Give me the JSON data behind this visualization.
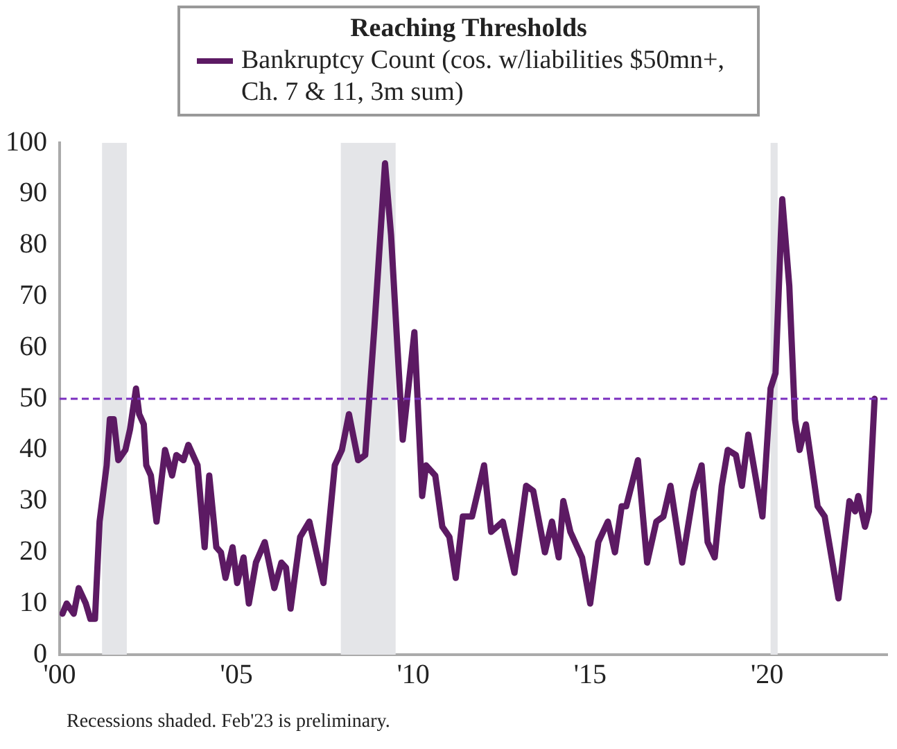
{
  "chart_data": {
    "type": "line",
    "title": "Reaching Thresholds",
    "series": [
      {
        "name": "Bankruptcy Count (cos. w/liabilities $50mn+, Ch. 7 & 11, 3m sum)",
        "color": "#5c1a63",
        "x": [
          2000.08,
          2000.2,
          2000.4,
          2000.54,
          2000.74,
          2000.87,
          2001.0,
          2001.13,
          2001.33,
          2001.42,
          2001.53,
          2001.66,
          2001.86,
          2001.99,
          2002.16,
          2002.25,
          2002.38,
          2002.45,
          2002.58,
          2002.74,
          2002.98,
          2003.18,
          2003.3,
          2003.5,
          2003.64,
          2003.9,
          2004.1,
          2004.23,
          2004.43,
          2004.56,
          2004.69,
          2004.89,
          2005.02,
          2005.2,
          2005.35,
          2005.55,
          2005.8,
          2006.07,
          2006.27,
          2006.4,
          2006.53,
          2006.8,
          2007.06,
          2007.46,
          2007.78,
          2007.98,
          2008.18,
          2008.44,
          2008.64,
          2008.9,
          2009.2,
          2009.37,
          2009.7,
          2010.03,
          2010.25,
          2010.36,
          2010.62,
          2010.82,
          2011.02,
          2011.2,
          2011.4,
          2011.66,
          2012.0,
          2012.2,
          2012.53,
          2012.86,
          2013.19,
          2013.39,
          2013.72,
          2013.92,
          2014.11,
          2014.24,
          2014.44,
          2014.77,
          2015.0,
          2015.23,
          2015.5,
          2015.7,
          2015.89,
          2016.02,
          2016.35,
          2016.61,
          2016.87,
          2017.07,
          2017.27,
          2017.6,
          2017.93,
          2018.15,
          2018.32,
          2018.52,
          2018.72,
          2018.89,
          2019.12,
          2019.29,
          2019.47,
          2019.87,
          2020.1,
          2020.24,
          2020.43,
          2020.63,
          2020.79,
          2020.92,
          2021.1,
          2021.43,
          2021.63,
          2022.02,
          2022.33,
          2022.49,
          2022.58,
          2022.77,
          2022.88,
          2023.04
        ],
        "values": [
          8,
          10,
          8,
          13,
          10,
          7,
          7,
          26,
          37,
          46,
          46,
          38,
          40,
          44,
          52,
          47,
          45,
          37,
          35,
          26,
          40,
          35,
          39,
          38,
          41,
          37,
          21,
          35,
          21,
          20,
          15,
          21,
          14,
          19,
          10,
          18,
          22,
          13,
          18,
          17,
          9,
          23,
          26,
          14,
          37,
          40,
          47,
          38,
          39,
          64,
          96,
          82,
          42,
          63,
          31,
          37,
          35,
          25,
          23,
          15,
          27,
          27,
          37,
          24,
          26,
          16,
          33,
          32,
          20,
          26,
          19,
          30,
          24,
          19,
          10,
          22,
          26,
          20,
          29,
          29,
          38,
          18,
          26,
          27,
          33,
          18,
          32,
          37,
          22,
          19,
          33,
          40,
          39,
          33,
          43,
          27,
          52,
          55,
          89,
          72,
          46,
          40,
          45,
          29,
          27,
          11,
          30,
          28,
          31,
          25,
          28,
          50
        ]
      }
    ],
    "xlim": [
      2000,
      2023.4
    ],
    "xticks": [
      {
        "value": 2000,
        "label": "'00"
      },
      {
        "value": 2005,
        "label": "'05"
      },
      {
        "value": 2010,
        "label": "'10"
      },
      {
        "value": 2015,
        "label": "'15"
      },
      {
        "value": 2020,
        "label": "'20"
      }
    ],
    "ylim": [
      0,
      100
    ],
    "yticks": [
      0,
      10,
      20,
      30,
      40,
      50,
      60,
      70,
      80,
      90,
      100
    ],
    "ref_lines": [
      {
        "axis": "y",
        "value": 50,
        "color": "#7b2fbf",
        "line_style": "dashed"
      }
    ],
    "bands": [
      {
        "axis": "x",
        "from": 2001.2,
        "to": 2001.9,
        "color": "#e4e5e8"
      },
      {
        "axis": "x",
        "from": 2007.95,
        "to": 2009.5,
        "color": "#e4e5e8"
      },
      {
        "axis": "x",
        "from": 2020.1,
        "to": 2020.3,
        "color": "#e4e5e8"
      }
    ],
    "annotations": [
      "Recessions shaded. Feb'23 is preliminary."
    ],
    "grid": false,
    "legend": "top",
    "marker": "none",
    "line_style": "solid"
  }
}
